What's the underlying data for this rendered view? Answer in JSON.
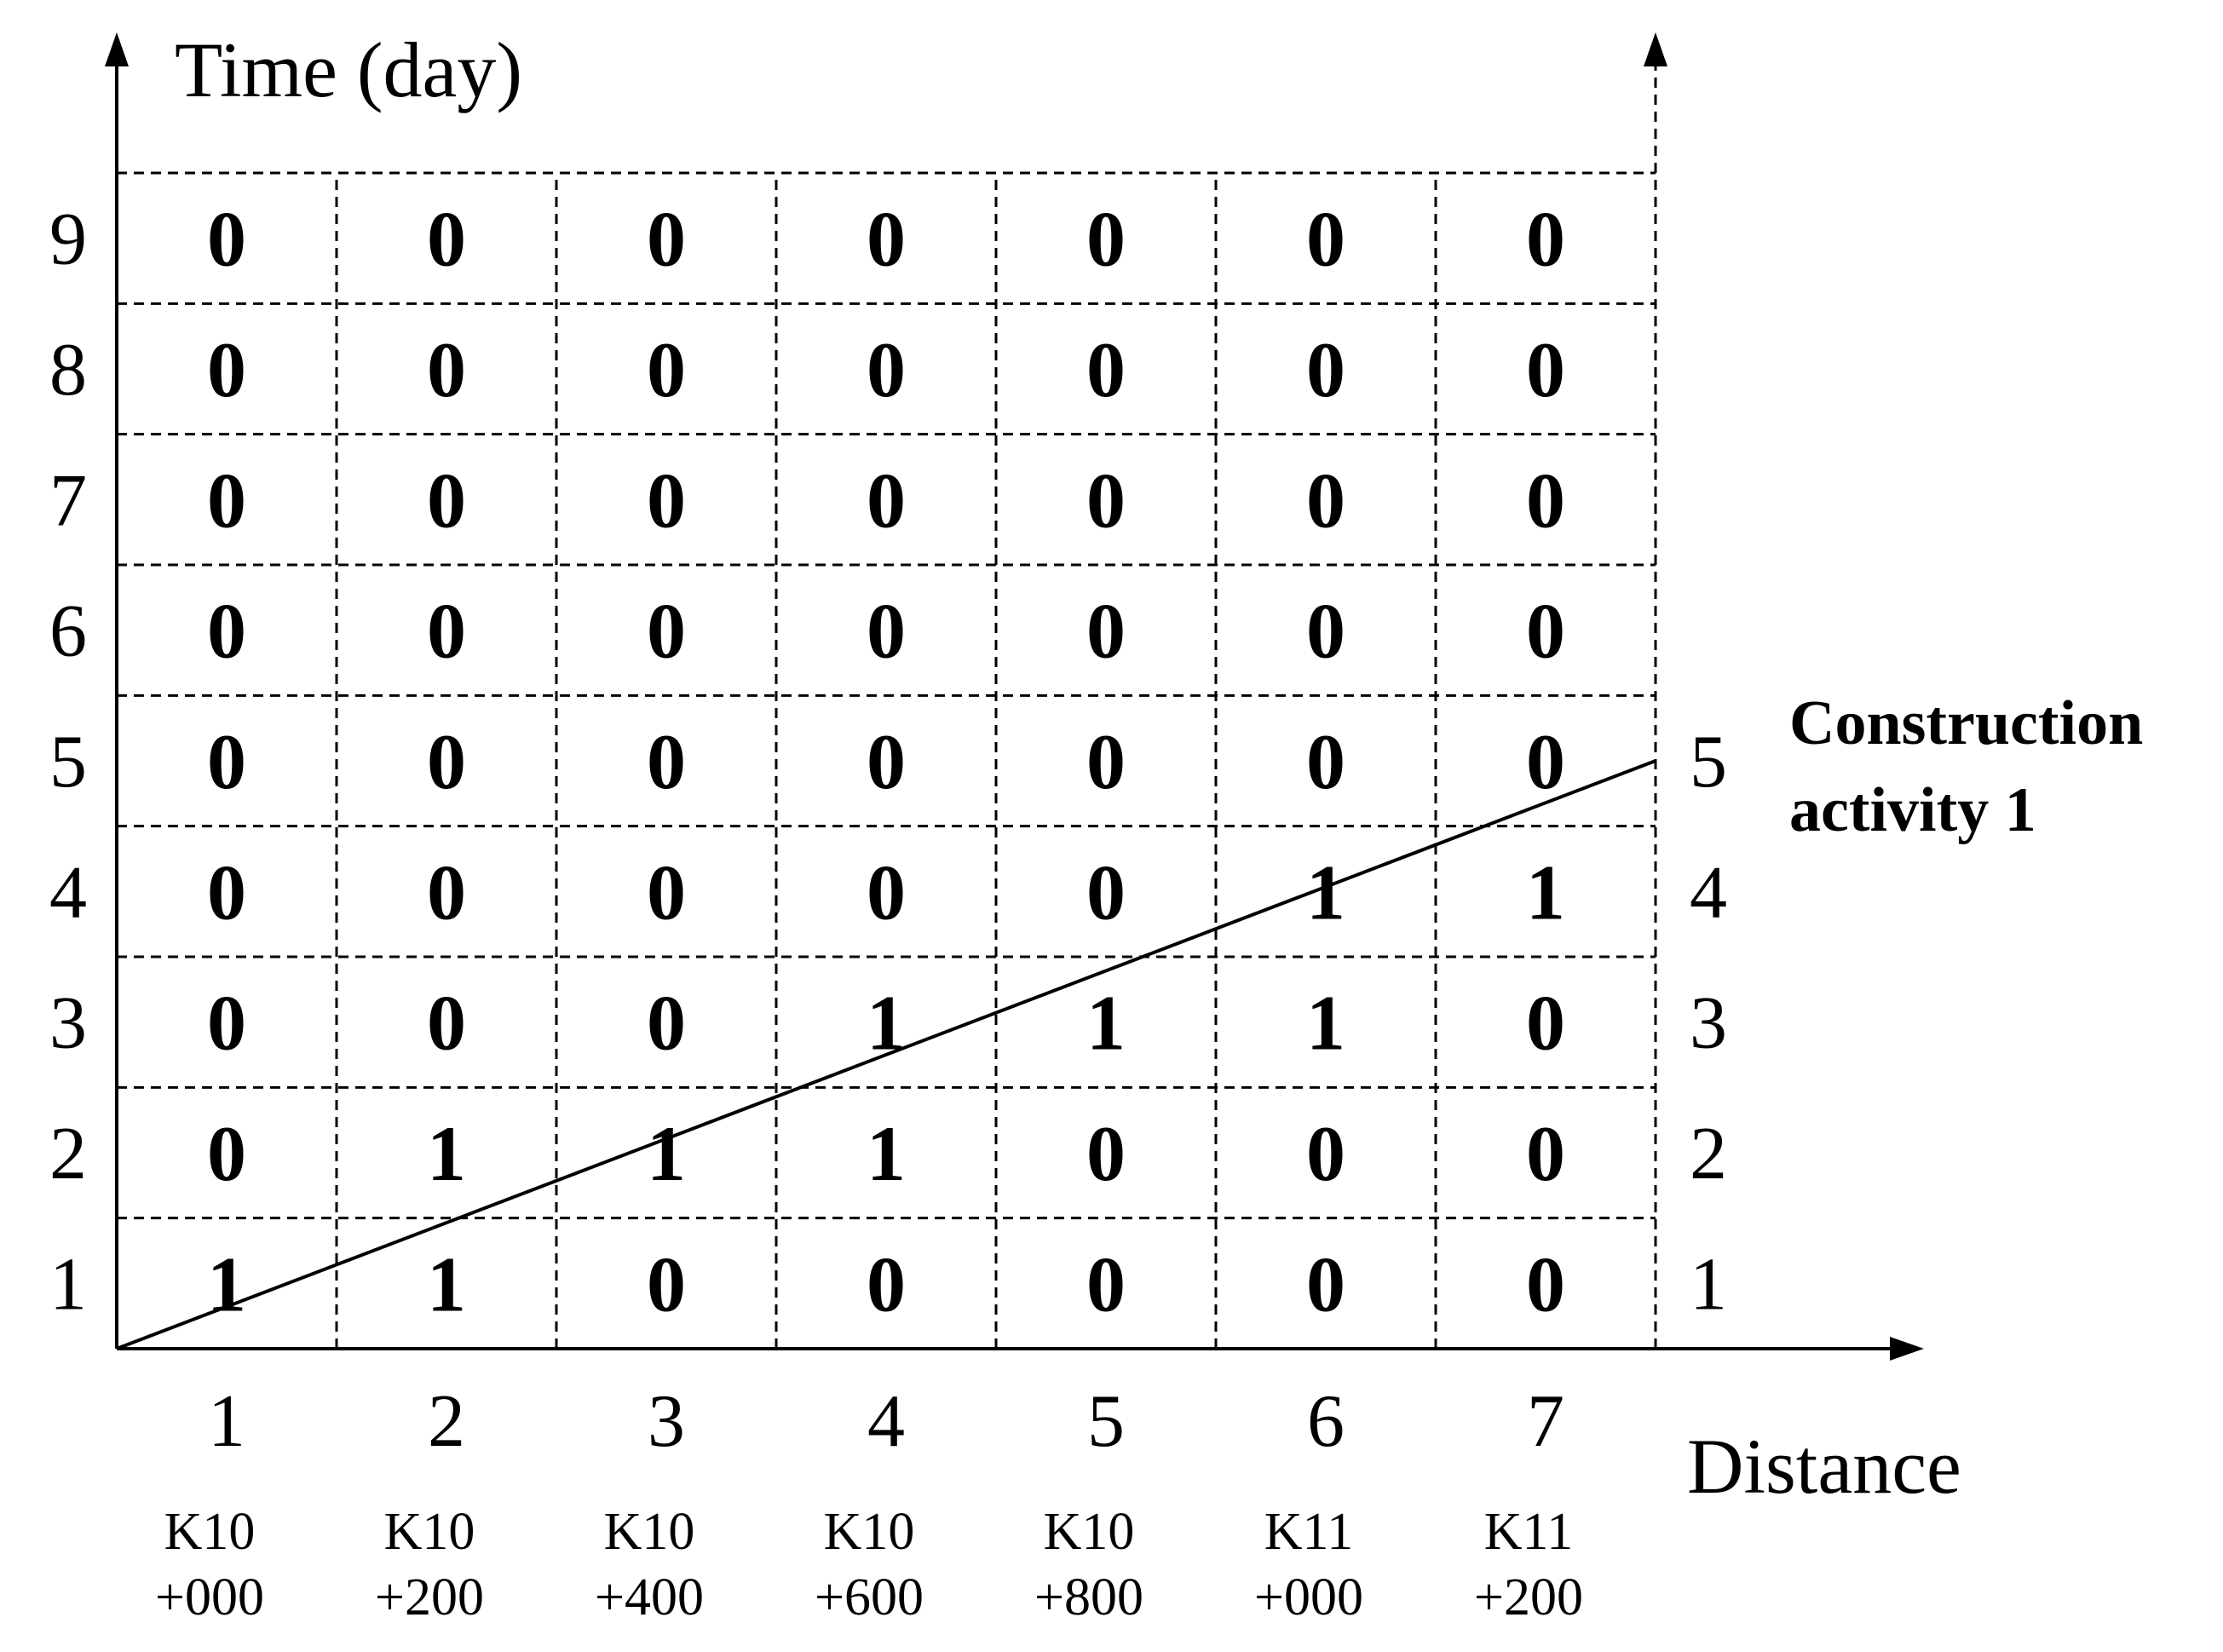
{
  "chart_data": {
    "type": "table",
    "title": "",
    "ylabel": "Time (day)",
    "xlabel": "Distance",
    "columns": [
      1,
      2,
      3,
      4,
      5,
      6,
      7
    ],
    "rows": [
      1,
      2,
      3,
      4,
      5,
      6,
      7,
      8,
      9
    ],
    "stations": [
      {
        "top": "K10",
        "bottom": "+000"
      },
      {
        "top": "K10",
        "bottom": "+200"
      },
      {
        "top": "K10",
        "bottom": "+400"
      },
      {
        "top": "K10",
        "bottom": "+600"
      },
      {
        "top": "K10",
        "bottom": "+800"
      },
      {
        "top": "K11",
        "bottom": "+000"
      },
      {
        "top": "K11",
        "bottom": "+200"
      }
    ],
    "right_axis_labels": [
      1,
      2,
      3,
      4,
      5
    ],
    "cells": [
      [
        1,
        1,
        0,
        0,
        0,
        0,
        0
      ],
      [
        0,
        1,
        1,
        1,
        0,
        0,
        0
      ],
      [
        0,
        0,
        0,
        1,
        1,
        1,
        0
      ],
      [
        0,
        0,
        0,
        0,
        0,
        1,
        1
      ],
      [
        0,
        0,
        0,
        0,
        0,
        0,
        0
      ],
      [
        0,
        0,
        0,
        0,
        0,
        0,
        0
      ],
      [
        0,
        0,
        0,
        0,
        0,
        0,
        0
      ],
      [
        0,
        0,
        0,
        0,
        0,
        0,
        0
      ],
      [
        0,
        0,
        0,
        0,
        0,
        0,
        0
      ]
    ],
    "activity": {
      "label_line1": "Construction",
      "label_line2": "activity 1",
      "start": {
        "distance": 0,
        "time": 0
      },
      "end": {
        "distance": 7,
        "time": 4.5
      }
    }
  }
}
